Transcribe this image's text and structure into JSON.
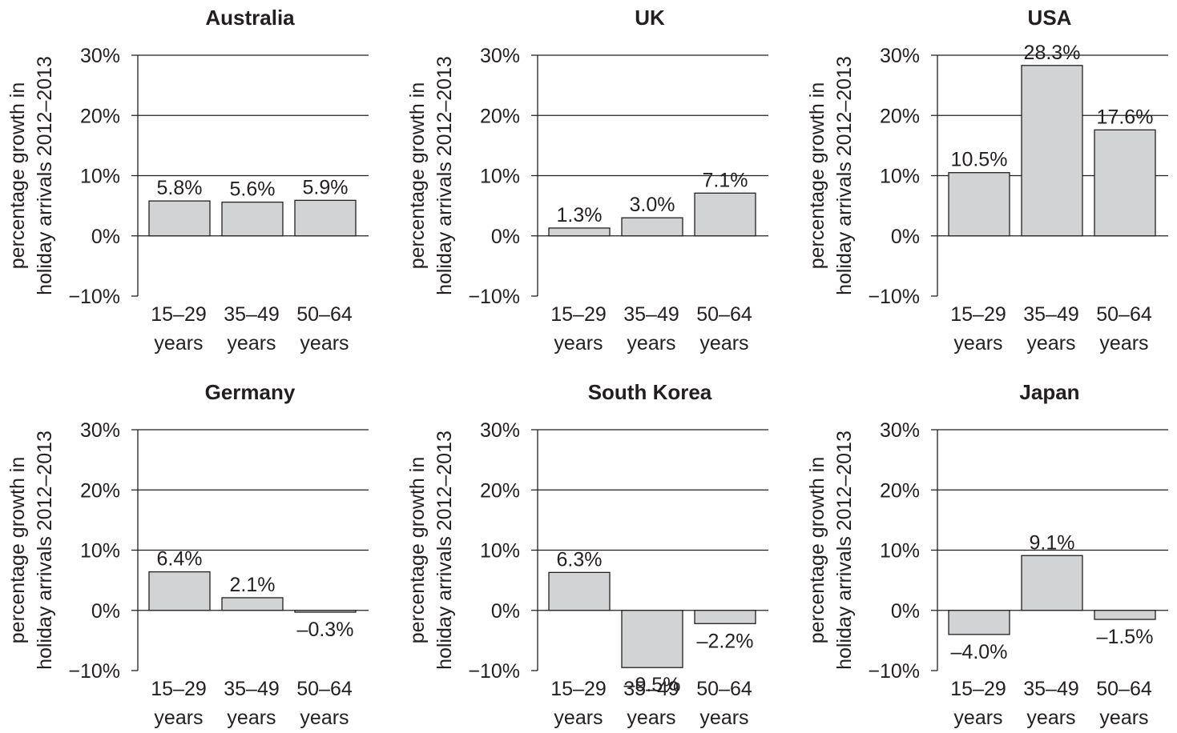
{
  "chart_data": [
    {
      "type": "bar",
      "title": "Australia",
      "ylabel": [
        "percentage growth in",
        "holiday arrivals 2012–2013"
      ],
      "categories": [
        [
          "15–29",
          "years"
        ],
        [
          "35–49",
          "years"
        ],
        [
          "50–64",
          "years"
        ]
      ],
      "values": [
        5.8,
        5.6,
        5.9
      ],
      "value_labels": [
        "5.8%",
        "5.6%",
        "5.9%"
      ],
      "ylim": [
        -10,
        30
      ],
      "yticks": [
        -10,
        0,
        10,
        20,
        30
      ],
      "ytick_labels": [
        "−10%",
        "0%",
        "10%",
        "20%",
        "30%"
      ],
      "grid": true,
      "bar_color": "#d1d3d4",
      "edge_color": "#231f20"
    },
    {
      "type": "bar",
      "title": "UK",
      "ylabel": [
        "percentage growth in",
        "holiday arrivals 2012–2013"
      ],
      "categories": [
        [
          "15–29",
          "years"
        ],
        [
          "35–49",
          "years"
        ],
        [
          "50–64",
          "years"
        ]
      ],
      "values": [
        1.3,
        3.0,
        7.1
      ],
      "value_labels": [
        "1.3%",
        "3.0%",
        "7.1%"
      ],
      "ylim": [
        -10,
        30
      ],
      "yticks": [
        -10,
        0,
        10,
        20,
        30
      ],
      "ytick_labels": [
        "−10%",
        "0%",
        "10%",
        "20%",
        "30%"
      ],
      "grid": true,
      "bar_color": "#d1d3d4",
      "edge_color": "#231f20"
    },
    {
      "type": "bar",
      "title": "USA",
      "ylabel": [
        "percentage growth in",
        "holiday arrivals 2012–2013"
      ],
      "categories": [
        [
          "15–29",
          "years"
        ],
        [
          "35–49",
          "years"
        ],
        [
          "50–64",
          "years"
        ]
      ],
      "values": [
        10.5,
        28.3,
        17.6
      ],
      "value_labels": [
        "10.5%",
        "28.3%",
        "17.6%"
      ],
      "ylim": [
        -10,
        30
      ],
      "yticks": [
        -10,
        0,
        10,
        20,
        30
      ],
      "ytick_labels": [
        "−10%",
        "0%",
        "10%",
        "20%",
        "30%"
      ],
      "grid": true,
      "bar_color": "#d1d3d4",
      "edge_color": "#231f20"
    },
    {
      "type": "bar",
      "title": "Germany",
      "ylabel": [
        "percentage growth in",
        "holiday arrivals 2012–2013"
      ],
      "categories": [
        [
          "15–29",
          "years"
        ],
        [
          "35–49",
          "years"
        ],
        [
          "50–64",
          "years"
        ]
      ],
      "values": [
        6.4,
        2.1,
        -0.3
      ],
      "value_labels": [
        "6.4%",
        "2.1%",
        "–0.3%"
      ],
      "ylim": [
        -10,
        30
      ],
      "yticks": [
        -10,
        0,
        10,
        20,
        30
      ],
      "ytick_labels": [
        "−10%",
        "0%",
        "10%",
        "20%",
        "30%"
      ],
      "grid": true,
      "bar_color": "#d1d3d4",
      "edge_color": "#231f20"
    },
    {
      "type": "bar",
      "title": "South Korea",
      "ylabel": [
        "percentage growth in",
        "holiday arrivals 2012–2013"
      ],
      "categories": [
        [
          "15–29",
          "years"
        ],
        [
          "35–49",
          "years"
        ],
        [
          "50–64",
          "years"
        ]
      ],
      "values": [
        6.3,
        -9.5,
        -2.2
      ],
      "value_labels": [
        "6.3%",
        "–9.5%",
        "–2.2%"
      ],
      "ylim": [
        -10,
        30
      ],
      "yticks": [
        -10,
        0,
        10,
        20,
        30
      ],
      "ytick_labels": [
        "−10%",
        "0%",
        "10%",
        "20%",
        "30%"
      ],
      "grid": true,
      "bar_color": "#d1d3d4",
      "edge_color": "#231f20"
    },
    {
      "type": "bar",
      "title": "Japan",
      "ylabel": [
        "percentage growth in",
        "holiday arrivals 2012–2013"
      ],
      "categories": [
        [
          "15–29",
          "years"
        ],
        [
          "35–49",
          "years"
        ],
        [
          "50–64",
          "years"
        ]
      ],
      "values": [
        -4.0,
        9.1,
        -1.5
      ],
      "value_labels": [
        "–4.0%",
        "9.1%",
        "–1.5%"
      ],
      "ylim": [
        -10,
        30
      ],
      "yticks": [
        -10,
        0,
        10,
        20,
        30
      ],
      "ytick_labels": [
        "−10%",
        "0%",
        "10%",
        "20%",
        "30%"
      ],
      "grid": true,
      "bar_color": "#d1d3d4",
      "edge_color": "#231f20"
    }
  ]
}
